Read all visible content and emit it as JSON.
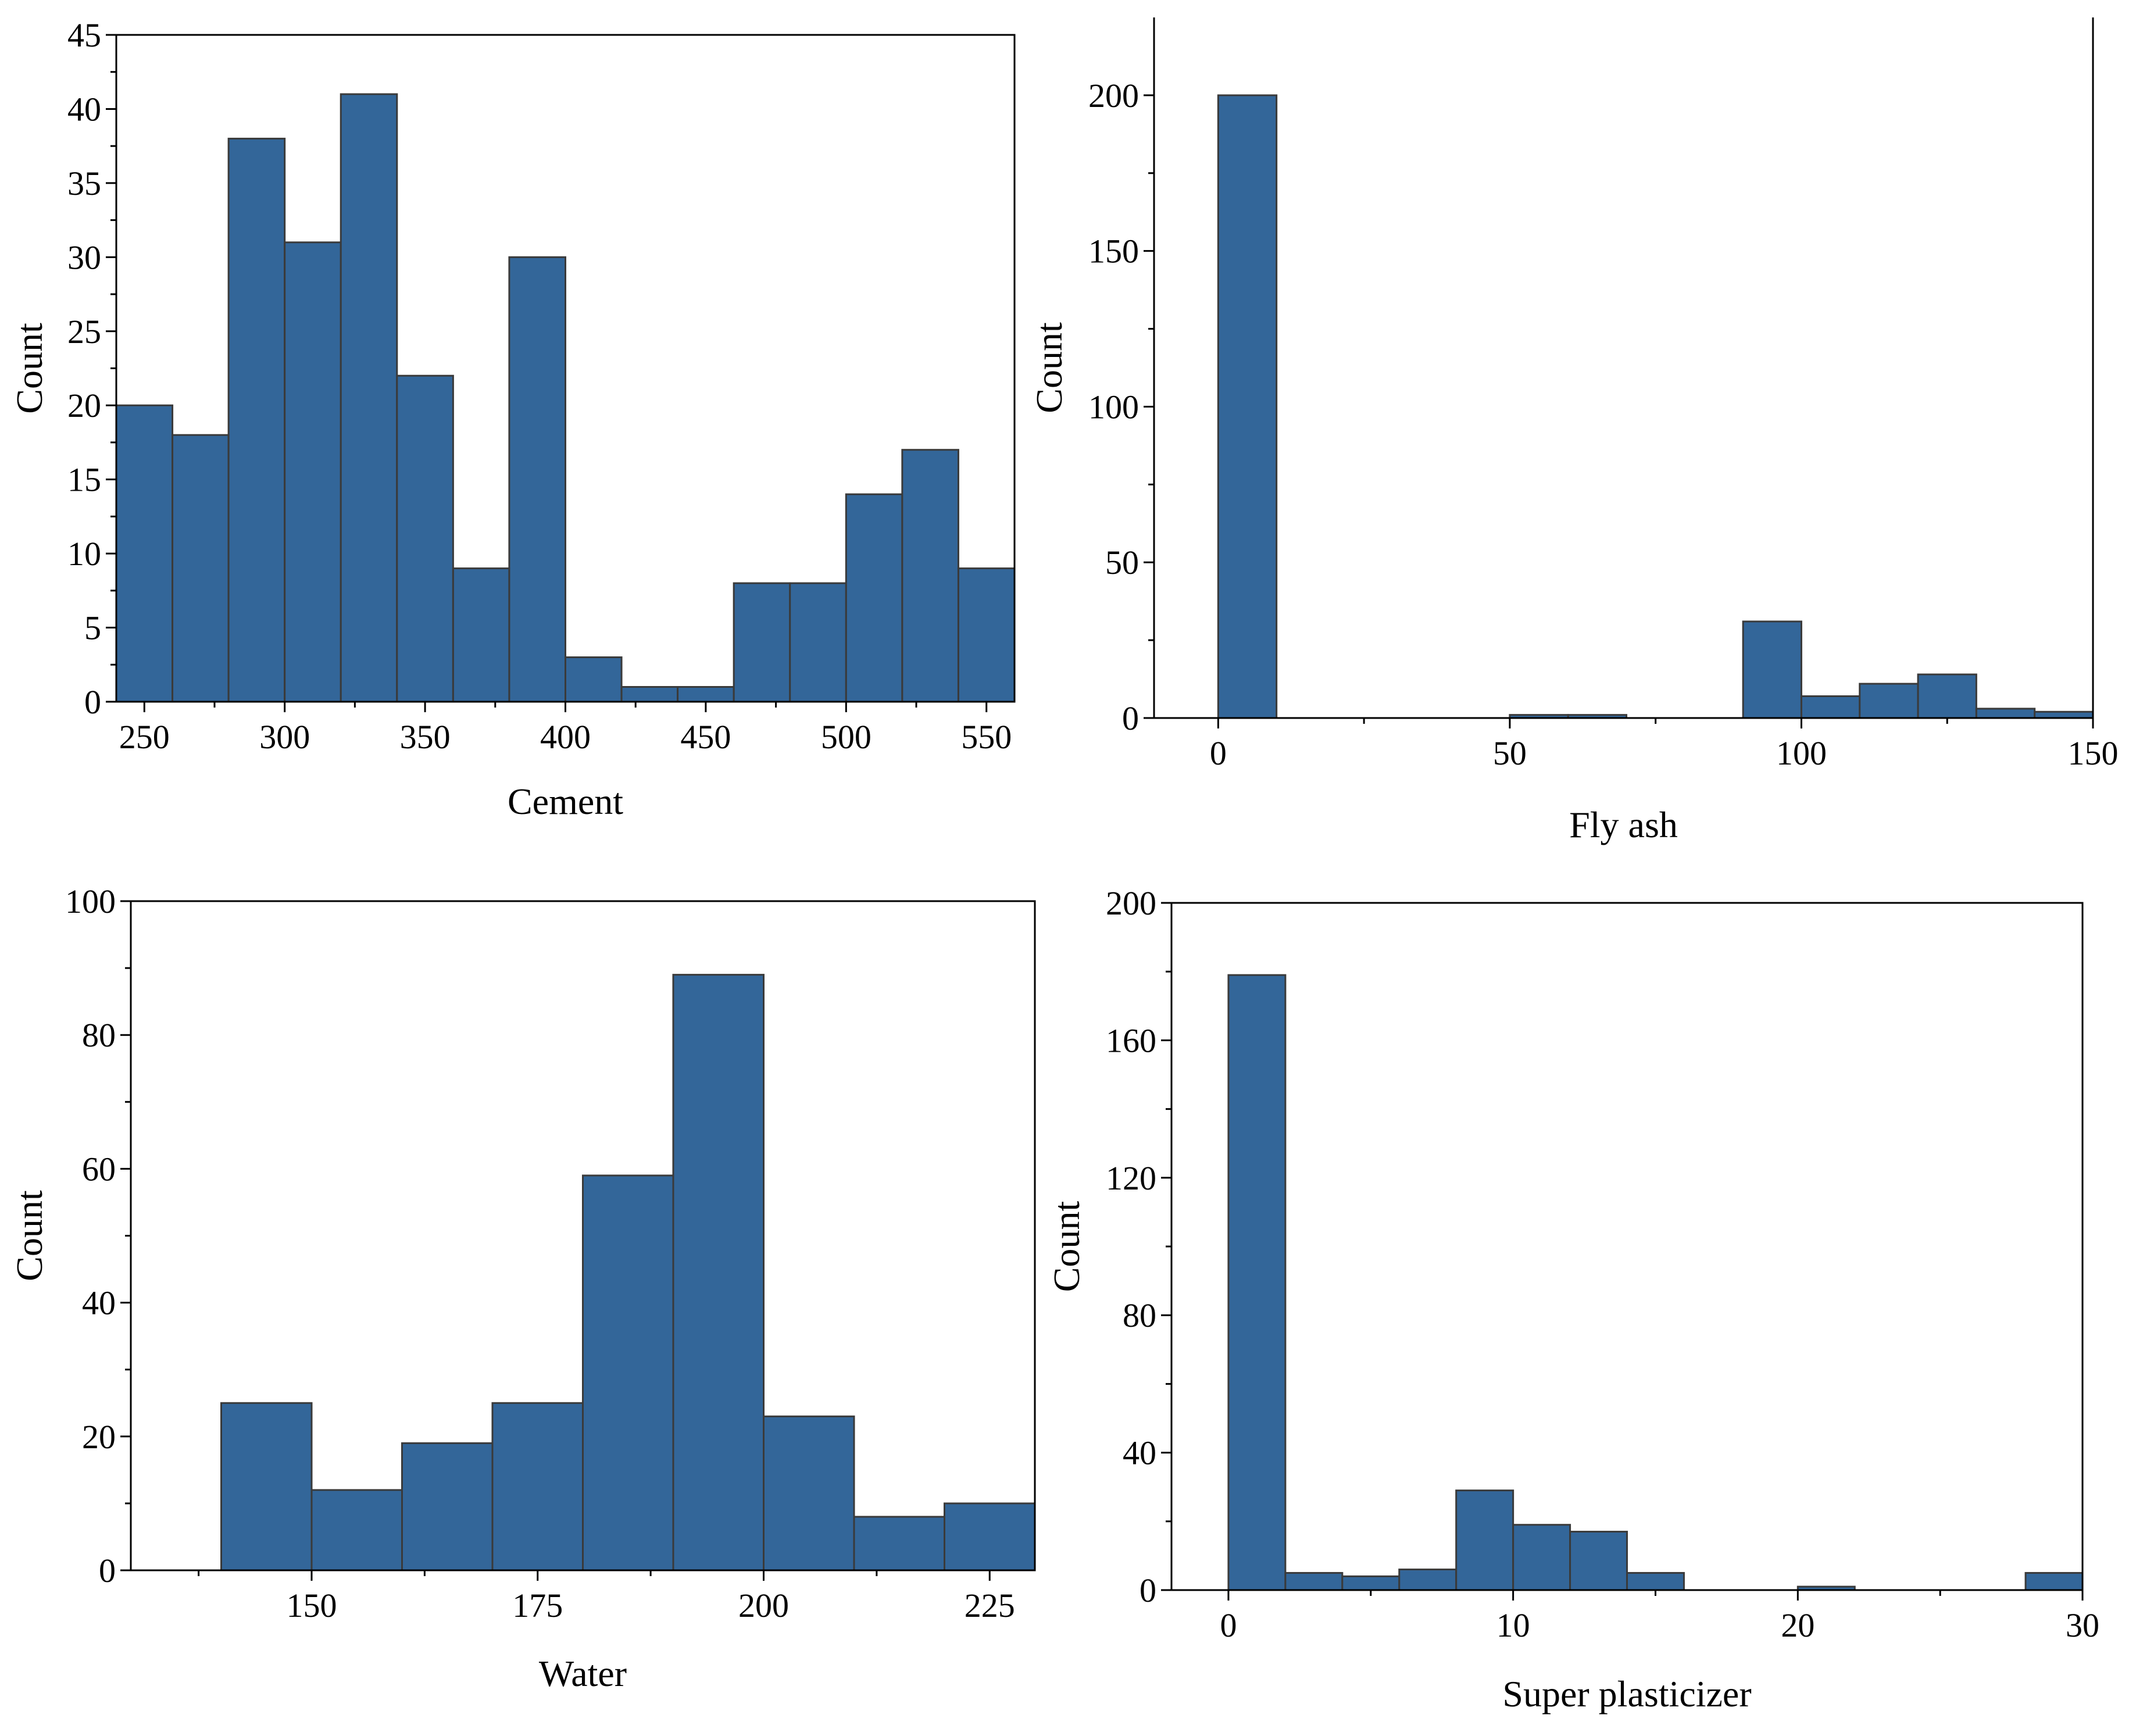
{
  "colors": {
    "bar_fill": "#336699",
    "bar_edge": "#3a3a3a",
    "axis": "#000000"
  },
  "chart_data": [
    {
      "id": "cement",
      "type": "bar",
      "title": "",
      "xlabel": "Cement",
      "ylabel": "Count",
      "xlim": [
        240,
        560
      ],
      "ylim": [
        0,
        45
      ],
      "xticks": [
        250,
        300,
        350,
        400,
        450,
        500,
        550
      ],
      "yticks": [
        0,
        5,
        10,
        15,
        20,
        25,
        30,
        35,
        40,
        45
      ],
      "bin_edges": [
        240,
        260,
        280,
        300,
        320,
        340,
        360,
        380,
        400,
        420,
        440,
        460,
        480,
        500,
        520,
        540,
        560
      ],
      "values": [
        20,
        18,
        38,
        31,
        41,
        22,
        9,
        30,
        3,
        1,
        1,
        8,
        8,
        14,
        17,
        9
      ]
    },
    {
      "id": "fly-ash",
      "type": "bar",
      "title": "",
      "xlabel": "Fly ash",
      "ylabel": "Count",
      "xlim": [
        -11,
        150
      ],
      "ylim": [
        0,
        225
      ],
      "xticks": [
        0,
        50,
        100,
        150
      ],
      "yticks": [
        0,
        50,
        100,
        150,
        200
      ],
      "bin_edges": [
        0,
        10,
        20,
        30,
        40,
        50,
        60,
        70,
        80,
        90,
        100,
        110,
        120,
        130,
        140,
        150
      ],
      "values": [
        200,
        0,
        0,
        0,
        0,
        1,
        1,
        0,
        0,
        31,
        7,
        11,
        14,
        3,
        2
      ]
    },
    {
      "id": "water",
      "type": "bar",
      "title": "",
      "xlabel": "Water",
      "ylabel": "Count",
      "xlim": [
        130,
        230
      ],
      "ylim": [
        0,
        100
      ],
      "xticks": [
        150,
        175,
        200,
        225
      ],
      "yticks": [
        0,
        20,
        40,
        60,
        80,
        100
      ],
      "bin_edges": [
        140,
        150,
        160,
        170,
        180,
        190,
        200,
        210,
        220,
        230
      ],
      "values": [
        25,
        12,
        19,
        25,
        59,
        89,
        23,
        8,
        10
      ]
    },
    {
      "id": "super-plasticizer",
      "type": "bar",
      "title": "",
      "xlabel": "Super plasticizer",
      "ylabel": "Count",
      "xlim": [
        -2,
        30
      ],
      "ylim": [
        0,
        200
      ],
      "xticks": [
        0,
        10,
        20,
        30
      ],
      "yticks": [
        0,
        40,
        80,
        120,
        160,
        200
      ],
      "bin_edges": [
        0,
        2,
        4,
        6,
        8,
        10,
        12,
        14,
        16,
        18,
        20,
        22,
        24,
        26,
        28,
        30
      ],
      "values": [
        179,
        5,
        4,
        6,
        29,
        19,
        17,
        5,
        0,
        0,
        1,
        0,
        0,
        0,
        5
      ]
    }
  ]
}
